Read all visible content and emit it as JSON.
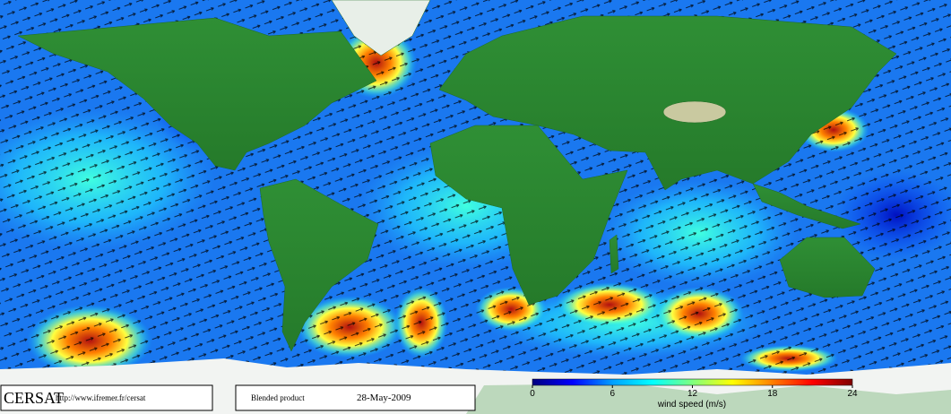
{
  "footer": {
    "logo": "CERSAT",
    "url": "http://www.ifremer.fr/cersat",
    "product": "Blended product",
    "date": "28-May-2009"
  },
  "colorbar": {
    "label": "wind speed (m/s)",
    "lim": [
      0,
      24
    ],
    "ticks": [
      0,
      6,
      12,
      18,
      24
    ],
    "colors": [
      "#00007f",
      "#0000ff",
      "#00a0ff",
      "#00ffff",
      "#7fff7f",
      "#ffff00",
      "#ff7f00",
      "#ff0000",
      "#7f0000"
    ]
  }
}
